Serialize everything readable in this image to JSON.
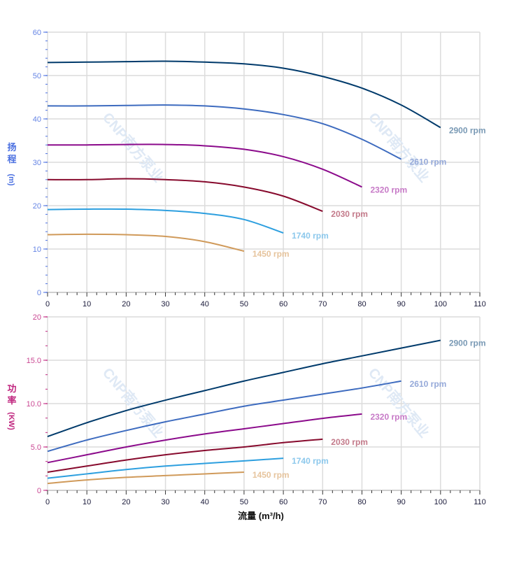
{
  "chart_data": [
    {
      "type": "line",
      "ylabel_chars": [
        "扬",
        "程",
        "(m)"
      ],
      "xlim": [
        0,
        110
      ],
      "ylim": [
        0,
        60
      ],
      "x_ticks": [
        0,
        10,
        20,
        30,
        40,
        50,
        60,
        70,
        80,
        90,
        100,
        110
      ],
      "y_ticks": [
        "0",
        "10",
        "20",
        "30",
        "40",
        "50",
        "60"
      ],
      "y_tick_values": [
        0,
        10,
        20,
        30,
        40,
        50,
        60
      ],
      "grid": true,
      "axis_color": "#4a6fe0",
      "series": [
        {
          "name": "2900 rpm",
          "color": "#003a6b",
          "label_color": "#7a9ab5",
          "x": [
            0,
            10,
            20,
            30,
            40,
            50,
            60,
            70,
            80,
            90,
            100
          ],
          "y": [
            53.0,
            53.1,
            53.2,
            53.3,
            53.1,
            52.7,
            51.7,
            49.8,
            47.1,
            43.2,
            38.0
          ]
        },
        {
          "name": "2610 rpm",
          "color": "#3d6bbf",
          "label_color": "#95a9d9",
          "x": [
            0,
            10,
            20,
            30,
            40,
            50,
            60,
            70,
            80,
            90
          ],
          "y": [
            43.0,
            43.0,
            43.1,
            43.2,
            43.0,
            42.3,
            41.0,
            38.9,
            35.3,
            30.7
          ]
        },
        {
          "name": "2320 rpm",
          "color": "#8b0a8b",
          "label_color": "#c77ac7",
          "x": [
            0,
            10,
            20,
            30,
            40,
            50,
            60,
            70,
            80
          ],
          "y": [
            34.0,
            34.0,
            34.1,
            34.1,
            33.8,
            33.0,
            31.3,
            28.4,
            24.3
          ]
        },
        {
          "name": "2030 rpm",
          "color": "#870a2d",
          "label_color": "#c37a8a",
          "x": [
            0,
            10,
            20,
            30,
            40,
            50,
            60,
            70
          ],
          "y": [
            26.0,
            26.0,
            26.2,
            26.0,
            25.5,
            24.3,
            22.2,
            18.7
          ]
        },
        {
          "name": "1740 rpm",
          "color": "#2d9fdf",
          "label_color": "#8cc8ec",
          "x": [
            0,
            10,
            20,
            30,
            40,
            50,
            60
          ],
          "y": [
            19.1,
            19.2,
            19.2,
            18.9,
            18.2,
            16.8,
            13.7
          ]
        },
        {
          "name": "1450 rpm",
          "color": "#d09a5a",
          "label_color": "#e6c49d",
          "x": [
            0,
            10,
            20,
            30,
            40,
            50
          ],
          "y": [
            13.3,
            13.4,
            13.3,
            12.9,
            11.7,
            9.5
          ]
        }
      ]
    },
    {
      "type": "line",
      "ylabel_chars": [
        "功",
        "率",
        "(KW)"
      ],
      "xlabel": "流量 (m³/h)",
      "xlim": [
        0,
        110
      ],
      "ylim": [
        0,
        20
      ],
      "x_ticks": [
        0,
        10,
        20,
        30,
        40,
        50,
        60,
        70,
        80,
        90,
        100,
        110
      ],
      "y_ticks": [
        "0",
        "5.0",
        "10.0",
        "15.0",
        "20"
      ],
      "y_tick_values": [
        0,
        5,
        10,
        15,
        20
      ],
      "grid": true,
      "axis_color": "#c0267f",
      "series": [
        {
          "name": "2900 rpm",
          "color": "#003a6b",
          "label_color": "#7a9ab5",
          "x": [
            0,
            10,
            20,
            30,
            40,
            50,
            60,
            70,
            80,
            90,
            100
          ],
          "y": [
            6.2,
            7.8,
            9.2,
            10.4,
            11.5,
            12.6,
            13.6,
            14.6,
            15.5,
            16.4,
            17.3
          ]
        },
        {
          "name": "2610 rpm",
          "color": "#3d6bbf",
          "label_color": "#95a9d9",
          "x": [
            0,
            10,
            20,
            30,
            40,
            50,
            60,
            70,
            80,
            90
          ],
          "y": [
            4.5,
            5.8,
            6.9,
            7.9,
            8.8,
            9.7,
            10.4,
            11.1,
            11.8,
            12.6
          ]
        },
        {
          "name": "2320 rpm",
          "color": "#8b0a8b",
          "label_color": "#c77ac7",
          "x": [
            0,
            10,
            20,
            30,
            40,
            50,
            60,
            70,
            80
          ],
          "y": [
            3.2,
            4.1,
            5.0,
            5.8,
            6.5,
            7.1,
            7.7,
            8.3,
            8.8
          ]
        },
        {
          "name": "2030 rpm",
          "color": "#870a2d",
          "label_color": "#c37a8a",
          "x": [
            0,
            10,
            20,
            30,
            40,
            50,
            60,
            70
          ],
          "y": [
            2.1,
            2.8,
            3.5,
            4.1,
            4.6,
            5.0,
            5.5,
            5.9
          ]
        },
        {
          "name": "1740 rpm",
          "color": "#2d9fdf",
          "label_color": "#8cc8ec",
          "x": [
            0,
            10,
            20,
            30,
            40,
            50,
            60
          ],
          "y": [
            1.4,
            1.9,
            2.4,
            2.8,
            3.1,
            3.4,
            3.7
          ]
        },
        {
          "name": "1450 rpm",
          "color": "#d09a5a",
          "label_color": "#e6c49d",
          "x": [
            0,
            10,
            20,
            30,
            40,
            50
          ],
          "y": [
            0.8,
            1.2,
            1.5,
            1.7,
            1.9,
            2.1
          ]
        }
      ]
    }
  ],
  "watermark": "CNP南方泵业"
}
